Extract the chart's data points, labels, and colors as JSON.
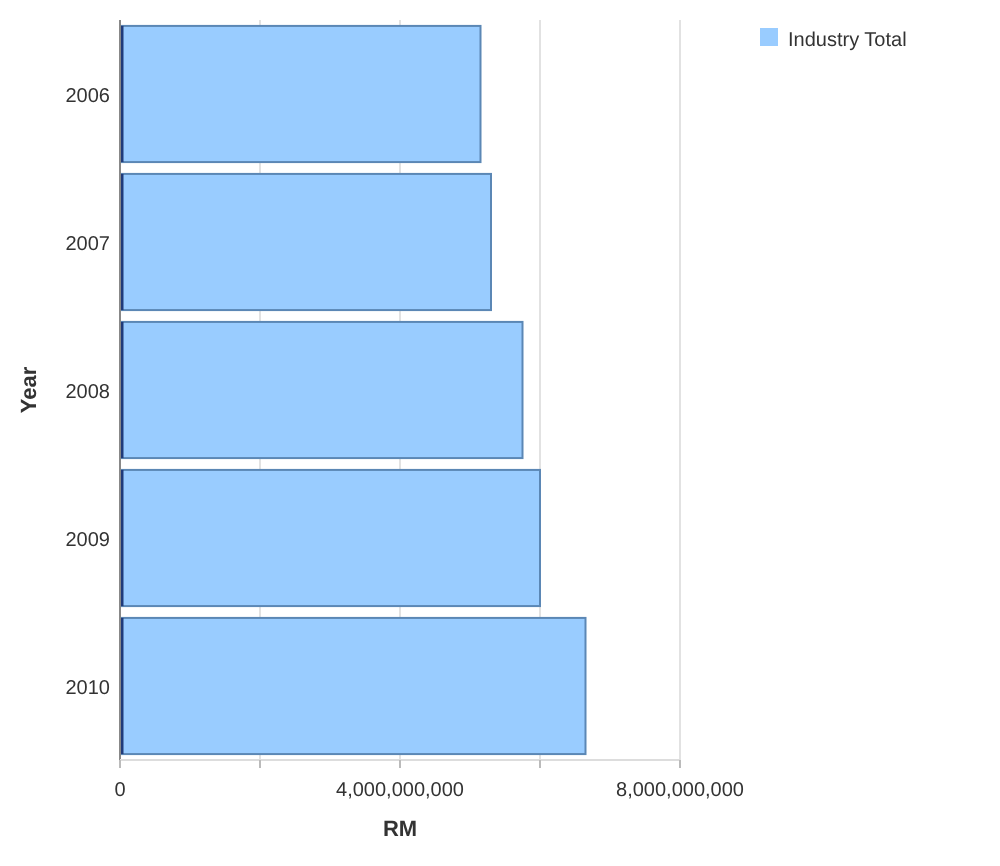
{
  "chart_data": {
    "type": "bar",
    "orientation": "horizontal",
    "categories": [
      "2006",
      "2007",
      "2008",
      "2009",
      "2010"
    ],
    "series": [
      {
        "name": "Industry Total",
        "color": "#99ccff",
        "values": [
          5150000000,
          5300000000,
          5750000000,
          6000000000,
          6650000000
        ]
      },
      {
        "color": "#1f3a7a",
        "values": [
          50000000,
          50000000,
          50000000,
          50000000,
          50000000
        ]
      }
    ],
    "xlabel": "RM",
    "ylabel": "Year",
    "xlim": [
      0,
      8000000000
    ],
    "xticks": [
      0,
      {
        "value": 2000000000,
        "label": null
      },
      {
        "value": 4000000000,
        "label": "4,000,000,000"
      },
      {
        "value": 6000000000,
        "label": null
      },
      {
        "value": 8000000000,
        "label": "8,000,000,000"
      }
    ],
    "grid": "x",
    "legend": "top right"
  }
}
